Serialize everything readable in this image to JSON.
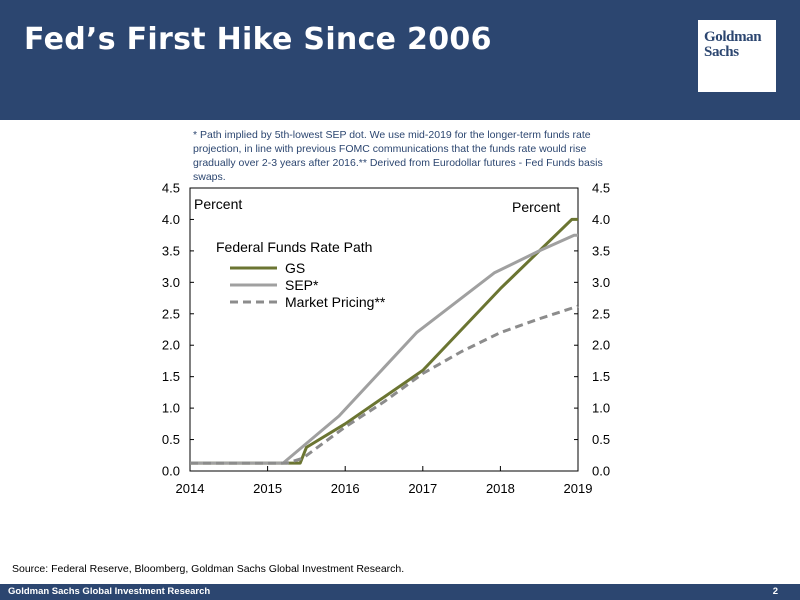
{
  "slide": {
    "title": "Fed’s First Hike Since 2006",
    "logo_text": [
      "Goldman",
      "Sachs"
    ],
    "footnote": "* Path implied by 5th-lowest SEP dot. We use mid-2019 for the longer-term funds rate projection, in line with previous FOMC communications that the funds rate would rise gradually over 2-3 years after 2016.** Derived from Eurodollar futures - Fed Funds basis swaps.",
    "source": "Source: Federal Reserve, Bloomberg, Goldman Sachs Global Investment Research.",
    "footer_left": "Goldman Sachs Global Investment Research",
    "page_number": "2",
    "colors": {
      "header": "#2c4670",
      "gs": "#6b7532",
      "sep": "#a0a0a0",
      "market": "#8c8c8c"
    }
  },
  "chart_data": {
    "type": "line",
    "legend_title": "Federal Funds Rate Path",
    "ylabel_left": "Percent",
    "ylabel_right": "Percent",
    "xlim": [
      2014,
      2019
    ],
    "ylim": [
      0,
      4.5
    ],
    "x_ticks": [
      2014,
      2015,
      2016,
      2017,
      2018,
      2019
    ],
    "y_ticks": [
      "0.0",
      "0.5",
      "1.0",
      "1.5",
      "2.0",
      "2.5",
      "3.0",
      "3.5",
      "4.0",
      "4.5"
    ],
    "legend_position": "top-left",
    "grid": false,
    "series": [
      {
        "name": "GS",
        "style": "solid",
        "color": "#6b7532",
        "points": [
          [
            2014,
            0.125
          ],
          [
            2015.42,
            0.125
          ],
          [
            2015.5,
            0.375
          ],
          [
            2016,
            0.75
          ],
          [
            2017,
            1.6
          ],
          [
            2018,
            2.9
          ],
          [
            2018.92,
            4.0
          ],
          [
            2019,
            4.0
          ]
        ]
      },
      {
        "name": "SEP*",
        "style": "solid",
        "color": "#a0a0a0",
        "points": [
          [
            2014,
            0.125
          ],
          [
            2015.2,
            0.125
          ],
          [
            2015.92,
            0.875
          ],
          [
            2016.92,
            2.2
          ],
          [
            2017.92,
            3.15
          ],
          [
            2018.5,
            3.5
          ],
          [
            2018.95,
            3.75
          ],
          [
            2019,
            3.75
          ]
        ]
      },
      {
        "name": "Market Pricing**",
        "style": "dashed",
        "color": "#8c8c8c",
        "points": [
          [
            2014,
            0.125
          ],
          [
            2015.25,
            0.125
          ],
          [
            2015.45,
            0.2
          ],
          [
            2016,
            0.7
          ],
          [
            2016.5,
            1.1
          ],
          [
            2017,
            1.55
          ],
          [
            2017.5,
            1.9
          ],
          [
            2018,
            2.2
          ],
          [
            2018.5,
            2.42
          ],
          [
            2019,
            2.62
          ]
        ]
      }
    ]
  }
}
